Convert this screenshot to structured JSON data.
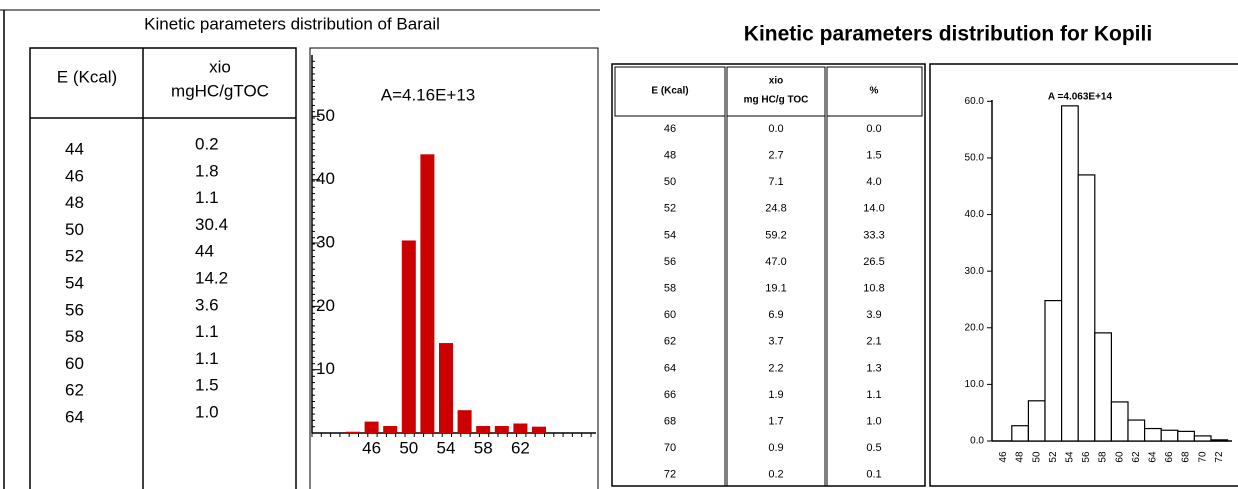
{
  "chart_data": [
    {
      "type": "bar",
      "title": "Kinetic parameters distribution of Barail",
      "annotation": "A=4.16E+13",
      "categories": [
        null,
        "46",
        null,
        "50",
        null,
        "54",
        null,
        "58",
        null,
        "62",
        null
      ],
      "values": [
        0.2,
        1.8,
        1.1,
        30.4,
        44,
        14.2,
        3.6,
        1.1,
        1.1,
        1.5,
        1.0
      ],
      "color": "#cc0000",
      "ylim": [
        0,
        57
      ],
      "yticks": [
        10,
        20,
        30,
        40,
        50
      ]
    },
    {
      "type": "histogram",
      "title": "Kinetic parameters distribution for Kopili",
      "annotation": "A =4.063E+14",
      "categories": [
        "46",
        "48",
        "50",
        "52",
        "54",
        "56",
        "58",
        "60",
        "62",
        "64",
        "66",
        "68",
        "70",
        "72"
      ],
      "values": [
        0.0,
        2.7,
        7.1,
        24.8,
        59.2,
        47.0,
        19.1,
        6.9,
        3.7,
        2.2,
        1.9,
        1.7,
        0.9,
        0.2
      ],
      "color": "#ffffff",
      "ylim": [
        0,
        62
      ],
      "yticks": [
        {
          "value": 0,
          "label": "0.0"
        },
        {
          "value": 10,
          "label": "10.0"
        },
        {
          "value": 20,
          "label": "20.0"
        },
        {
          "value": 30,
          "label": "30.0"
        },
        {
          "value": 40,
          "label": "40.0"
        },
        {
          "value": 50,
          "label": "50.0"
        },
        {
          "value": 60,
          "label": "60.0"
        }
      ]
    }
  ],
  "tables": [
    {
      "headers": [
        [
          "E  (Kcal)"
        ],
        [
          "xio",
          "mgHC/gTOC"
        ]
      ],
      "rows": [
        [
          "44",
          "0.2"
        ],
        [
          "46",
          "1.8"
        ],
        [
          "48",
          "1.1"
        ],
        [
          "50",
          "30.4"
        ],
        [
          "52",
          "44"
        ],
        [
          "54",
          "14.2"
        ],
        [
          "56",
          "3.6"
        ],
        [
          "58",
          "1.1"
        ],
        [
          "60",
          "1.1"
        ],
        [
          "62",
          "1.5"
        ],
        [
          "64",
          "1.0"
        ]
      ]
    },
    {
      "headers": [
        [
          "E (Kcal)"
        ],
        [
          "xio",
          "mg HC/g TOC"
        ],
        [
          "%"
        ]
      ],
      "rows": [
        [
          "46",
          "0.0",
          "0.0"
        ],
        [
          "48",
          "2.7",
          "1.5"
        ],
        [
          "50",
          "7.1",
          "4.0"
        ],
        [
          "52",
          "24.8",
          "14.0"
        ],
        [
          "54",
          "59.2",
          "33.3"
        ],
        [
          "56",
          "47.0",
          "26.5"
        ],
        [
          "58",
          "19.1",
          "10.8"
        ],
        [
          "60",
          "6.9",
          "3.9"
        ],
        [
          "62",
          "3.7",
          "2.1"
        ],
        [
          "64",
          "2.2",
          "1.3"
        ],
        [
          "66",
          "1.9",
          "1.1"
        ],
        [
          "68",
          "1.7",
          "1.0"
        ],
        [
          "70",
          "0.9",
          "0.5"
        ],
        [
          "72",
          "0.2",
          "0.1"
        ]
      ]
    }
  ]
}
